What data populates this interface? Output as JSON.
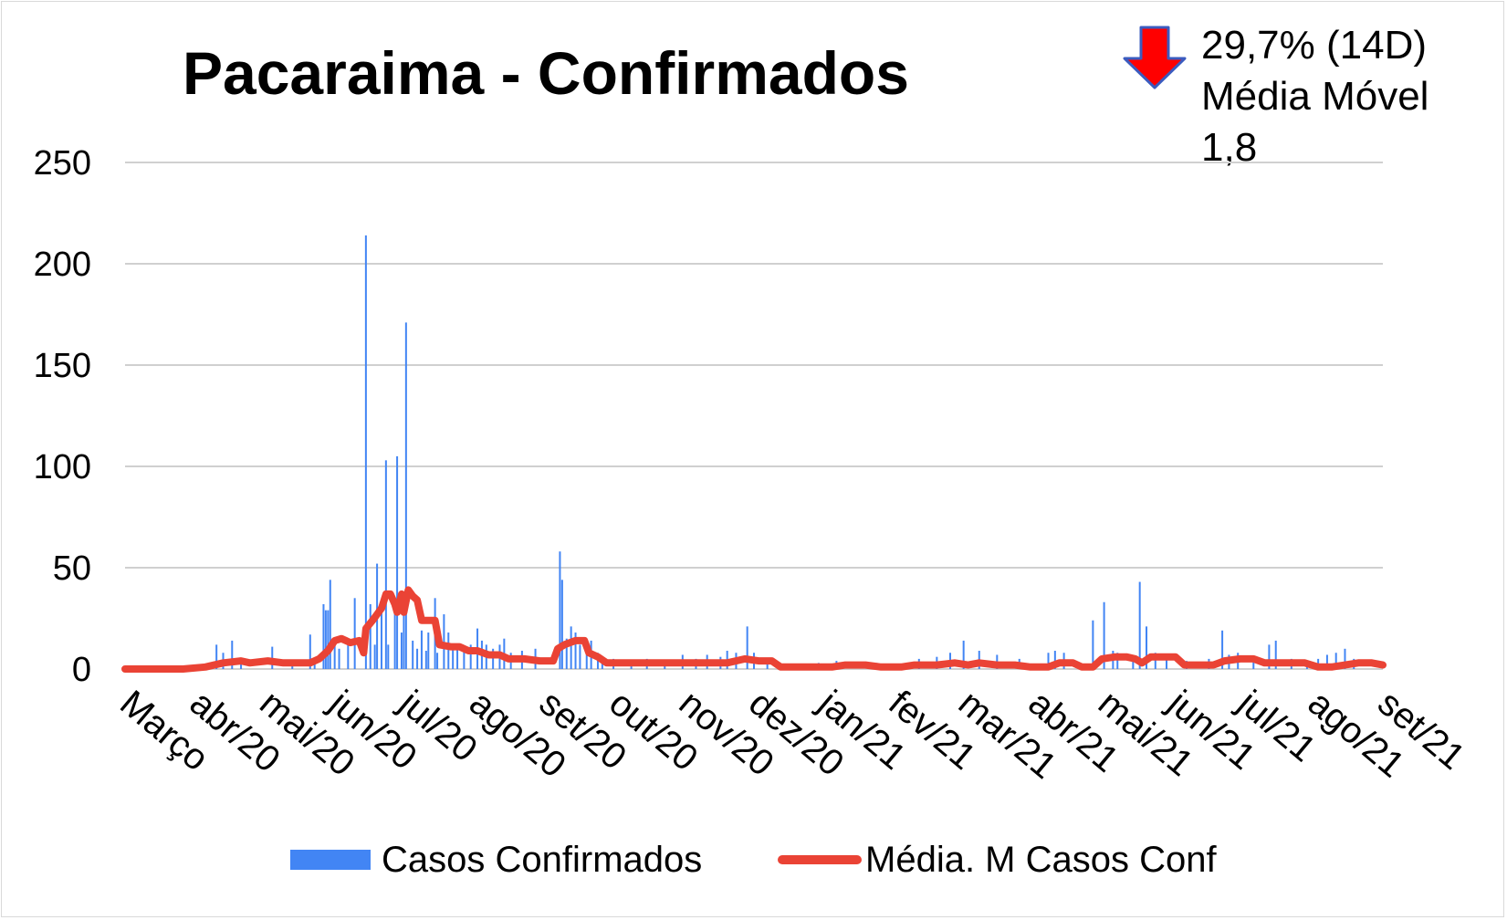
{
  "chart_data": {
    "type": "bar",
    "title": "Pacaraima - Confirmados",
    "annotation": {
      "change": "29,7% (14D)",
      "label": "Média Móvel",
      "value": "1,8",
      "direction": "down",
      "icon": "down-arrow-icon",
      "color": "#ff0000"
    },
    "ylim": [
      0,
      250
    ],
    "yticks": [
      "250",
      "200",
      "150",
      "100",
      "50",
      "0"
    ],
    "grid": true,
    "legend_position": "bottom",
    "xticks": [
      "Março",
      "abr/20",
      "mai/20",
      "jun/20",
      "jul/20",
      "ago/20",
      "set/20",
      "out/20",
      "nov/20",
      "dez/20",
      "jan/21",
      "fev/21",
      "mar/21",
      "abr/21",
      "mai/21",
      "jun/21",
      "jul/21",
      "ago/21",
      "set/21"
    ],
    "series": [
      {
        "name": "Casos Confirmados",
        "kind": "bar",
        "color": "#4285f4",
        "values": [
          [
            "2020-04-25",
            12
          ],
          [
            "2020-04-28",
            8
          ],
          [
            "2020-05-02",
            14
          ],
          [
            "2020-05-06",
            5
          ],
          [
            "2020-05-20",
            11
          ],
          [
            "2020-05-29",
            4
          ],
          [
            "2020-06-06",
            17
          ],
          [
            "2020-06-08",
            5
          ],
          [
            "2020-06-12",
            32
          ],
          [
            "2020-06-13",
            29
          ],
          [
            "2020-06-14",
            29
          ],
          [
            "2020-06-15",
            44
          ],
          [
            "2020-06-17",
            12
          ],
          [
            "2020-06-19",
            10
          ],
          [
            "2020-06-23",
            14
          ],
          [
            "2020-06-26",
            35
          ],
          [
            "2020-07-01",
            214
          ],
          [
            "2020-07-03",
            32
          ],
          [
            "2020-07-05",
            12
          ],
          [
            "2020-07-06",
            52
          ],
          [
            "2020-07-08",
            28
          ],
          [
            "2020-07-10",
            103
          ],
          [
            "2020-07-11",
            12
          ],
          [
            "2020-07-14",
            32
          ],
          [
            "2020-07-15",
            105
          ],
          [
            "2020-07-17",
            18
          ],
          [
            "2020-07-18",
            30
          ],
          [
            "2020-07-19",
            171
          ],
          [
            "2020-07-22",
            14
          ],
          [
            "2020-07-24",
            10
          ],
          [
            "2020-07-26",
            19
          ],
          [
            "2020-07-28",
            9
          ],
          [
            "2020-07-29",
            18
          ],
          [
            "2020-08-01",
            35
          ],
          [
            "2020-08-02",
            8
          ],
          [
            "2020-08-05",
            27
          ],
          [
            "2020-08-07",
            18
          ],
          [
            "2020-08-09",
            12
          ],
          [
            "2020-08-11",
            10
          ],
          [
            "2020-08-14",
            10
          ],
          [
            "2020-08-17",
            12
          ],
          [
            "2020-08-20",
            20
          ],
          [
            "2020-08-22",
            14
          ],
          [
            "2020-08-24",
            12
          ],
          [
            "2020-08-27",
            10
          ],
          [
            "2020-08-30",
            12
          ],
          [
            "2020-09-01",
            15
          ],
          [
            "2020-09-04",
            8
          ],
          [
            "2020-09-09",
            9
          ],
          [
            "2020-09-15",
            10
          ],
          [
            "2020-09-26",
            58
          ],
          [
            "2020-09-27",
            44
          ],
          [
            "2020-09-29",
            15
          ],
          [
            "2020-10-01",
            21
          ],
          [
            "2020-10-03",
            18
          ],
          [
            "2020-10-05",
            12
          ],
          [
            "2020-10-08",
            10
          ],
          [
            "2020-10-10",
            14
          ],
          [
            "2020-10-13",
            8
          ],
          [
            "2020-10-15",
            6
          ],
          [
            "2020-10-20",
            5
          ],
          [
            "2020-10-28",
            4
          ],
          [
            "2020-11-04",
            5
          ],
          [
            "2020-11-12",
            4
          ],
          [
            "2020-11-20",
            7
          ],
          [
            "2020-11-26",
            5
          ],
          [
            "2020-12-01",
            7
          ],
          [
            "2020-12-07",
            6
          ],
          [
            "2020-12-10",
            9
          ],
          [
            "2020-12-14",
            8
          ],
          [
            "2020-12-19",
            21
          ],
          [
            "2020-12-22",
            8
          ],
          [
            "2020-12-28",
            5
          ],
          [
            "2021-01-20",
            3
          ],
          [
            "2021-01-28",
            4
          ],
          [
            "2021-02-15",
            3
          ],
          [
            "2021-03-06",
            5
          ],
          [
            "2021-03-14",
            6
          ],
          [
            "2021-03-20",
            8
          ],
          [
            "2021-03-26",
            14
          ],
          [
            "2021-04-02",
            9
          ],
          [
            "2021-04-10",
            7
          ],
          [
            "2021-04-20",
            5
          ],
          [
            "2021-05-03",
            8
          ],
          [
            "2021-05-06",
            9
          ],
          [
            "2021-05-10",
            8
          ],
          [
            "2021-05-23",
            24
          ],
          [
            "2021-05-28",
            33
          ],
          [
            "2021-06-01",
            9
          ],
          [
            "2021-06-03",
            8
          ],
          [
            "2021-06-10",
            5
          ],
          [
            "2021-06-13",
            43
          ],
          [
            "2021-06-16",
            21
          ],
          [
            "2021-06-20",
            8
          ],
          [
            "2021-06-25",
            7
          ],
          [
            "2021-07-04",
            4
          ],
          [
            "2021-07-14",
            5
          ],
          [
            "2021-07-20",
            19
          ],
          [
            "2021-07-23",
            7
          ],
          [
            "2021-07-27",
            8
          ],
          [
            "2021-08-03",
            5
          ],
          [
            "2021-08-10",
            12
          ],
          [
            "2021-08-13",
            14
          ],
          [
            "2021-08-20",
            5
          ],
          [
            "2021-08-27",
            4
          ],
          [
            "2021-09-01",
            5
          ],
          [
            "2021-09-05",
            7
          ],
          [
            "2021-09-09",
            8
          ],
          [
            "2021-09-13",
            10
          ],
          [
            "2021-09-17",
            5
          ]
        ]
      },
      {
        "name": "Média. M Casos Conf",
        "kind": "line",
        "color": "#ea4335",
        "values": [
          [
            "2020-03-15",
            0
          ],
          [
            "2020-04-10",
            0
          ],
          [
            "2020-04-20",
            1
          ],
          [
            "2020-04-28",
            3
          ],
          [
            "2020-05-06",
            4
          ],
          [
            "2020-05-10",
            3
          ],
          [
            "2020-05-18",
            4
          ],
          [
            "2020-05-25",
            3
          ],
          [
            "2020-06-02",
            3
          ],
          [
            "2020-06-06",
            3
          ],
          [
            "2020-06-10",
            5
          ],
          [
            "2020-06-14",
            9
          ],
          [
            "2020-06-17",
            14
          ],
          [
            "2020-06-20",
            15
          ],
          [
            "2020-06-24",
            13
          ],
          [
            "2020-06-28",
            14
          ],
          [
            "2020-06-30",
            8
          ],
          [
            "2020-07-01",
            20
          ],
          [
            "2020-07-04",
            24
          ],
          [
            "2020-07-06",
            27
          ],
          [
            "2020-07-08",
            30
          ],
          [
            "2020-07-10",
            37
          ],
          [
            "2020-07-12",
            37
          ],
          [
            "2020-07-14",
            32
          ],
          [
            "2020-07-15",
            28
          ],
          [
            "2020-07-17",
            37
          ],
          [
            "2020-07-18",
            28
          ],
          [
            "2020-07-20",
            39
          ],
          [
            "2020-07-22",
            36
          ],
          [
            "2020-07-24",
            34
          ],
          [
            "2020-07-26",
            24
          ],
          [
            "2020-07-28",
            24
          ],
          [
            "2020-08-01",
            24
          ],
          [
            "2020-08-03",
            12
          ],
          [
            "2020-08-08",
            11
          ],
          [
            "2020-08-12",
            11
          ],
          [
            "2020-08-16",
            9
          ],
          [
            "2020-08-20",
            9
          ],
          [
            "2020-08-25",
            7
          ],
          [
            "2020-08-30",
            7
          ],
          [
            "2020-09-03",
            5
          ],
          [
            "2020-09-10",
            5
          ],
          [
            "2020-09-17",
            4
          ],
          [
            "2020-09-23",
            4
          ],
          [
            "2020-09-25",
            10
          ],
          [
            "2020-09-28",
            12
          ],
          [
            "2020-10-03",
            14
          ],
          [
            "2020-10-07",
            14
          ],
          [
            "2020-10-09",
            8
          ],
          [
            "2020-10-13",
            6
          ],
          [
            "2020-10-17",
            3
          ],
          [
            "2020-10-25",
            3
          ],
          [
            "2020-11-01",
            3
          ],
          [
            "2020-11-10",
            3
          ],
          [
            "2020-11-20",
            3
          ],
          [
            "2020-11-27",
            3
          ],
          [
            "2020-12-03",
            3
          ],
          [
            "2020-12-10",
            3
          ],
          [
            "2020-12-18",
            5
          ],
          [
            "2020-12-24",
            4
          ],
          [
            "2020-12-30",
            4
          ],
          [
            "2021-01-03",
            1
          ],
          [
            "2021-01-10",
            1
          ],
          [
            "2021-01-20",
            1
          ],
          [
            "2021-01-26",
            1
          ],
          [
            "2021-02-01",
            2
          ],
          [
            "2021-02-10",
            2
          ],
          [
            "2021-02-17",
            1
          ],
          [
            "2021-02-26",
            1
          ],
          [
            "2021-03-04",
            2
          ],
          [
            "2021-03-14",
            2
          ],
          [
            "2021-03-22",
            3
          ],
          [
            "2021-03-28",
            2
          ],
          [
            "2021-04-02",
            3
          ],
          [
            "2021-04-10",
            2
          ],
          [
            "2021-04-18",
            2
          ],
          [
            "2021-04-25",
            1
          ],
          [
            "2021-05-03",
            1
          ],
          [
            "2021-05-08",
            3
          ],
          [
            "2021-05-14",
            3
          ],
          [
            "2021-05-18",
            1
          ],
          [
            "2021-05-23",
            1
          ],
          [
            "2021-05-27",
            5
          ],
          [
            "2021-06-02",
            6
          ],
          [
            "2021-06-07",
            6
          ],
          [
            "2021-06-11",
            5
          ],
          [
            "2021-06-14",
            3
          ],
          [
            "2021-06-18",
            6
          ],
          [
            "2021-06-24",
            6
          ],
          [
            "2021-06-29",
            6
          ],
          [
            "2021-07-03",
            2
          ],
          [
            "2021-07-09",
            2
          ],
          [
            "2021-07-16",
            2
          ],
          [
            "2021-07-21",
            4
          ],
          [
            "2021-07-28",
            5
          ],
          [
            "2021-08-03",
            5
          ],
          [
            "2021-08-08",
            3
          ],
          [
            "2021-08-14",
            3
          ],
          [
            "2021-08-20",
            3
          ],
          [
            "2021-08-26",
            3
          ],
          [
            "2021-09-01",
            1
          ],
          [
            "2021-09-07",
            1
          ],
          [
            "2021-09-13",
            2
          ],
          [
            "2021-09-19",
            3
          ],
          [
            "2021-09-25",
            3
          ],
          [
            "2021-09-30",
            2
          ]
        ]
      }
    ]
  }
}
